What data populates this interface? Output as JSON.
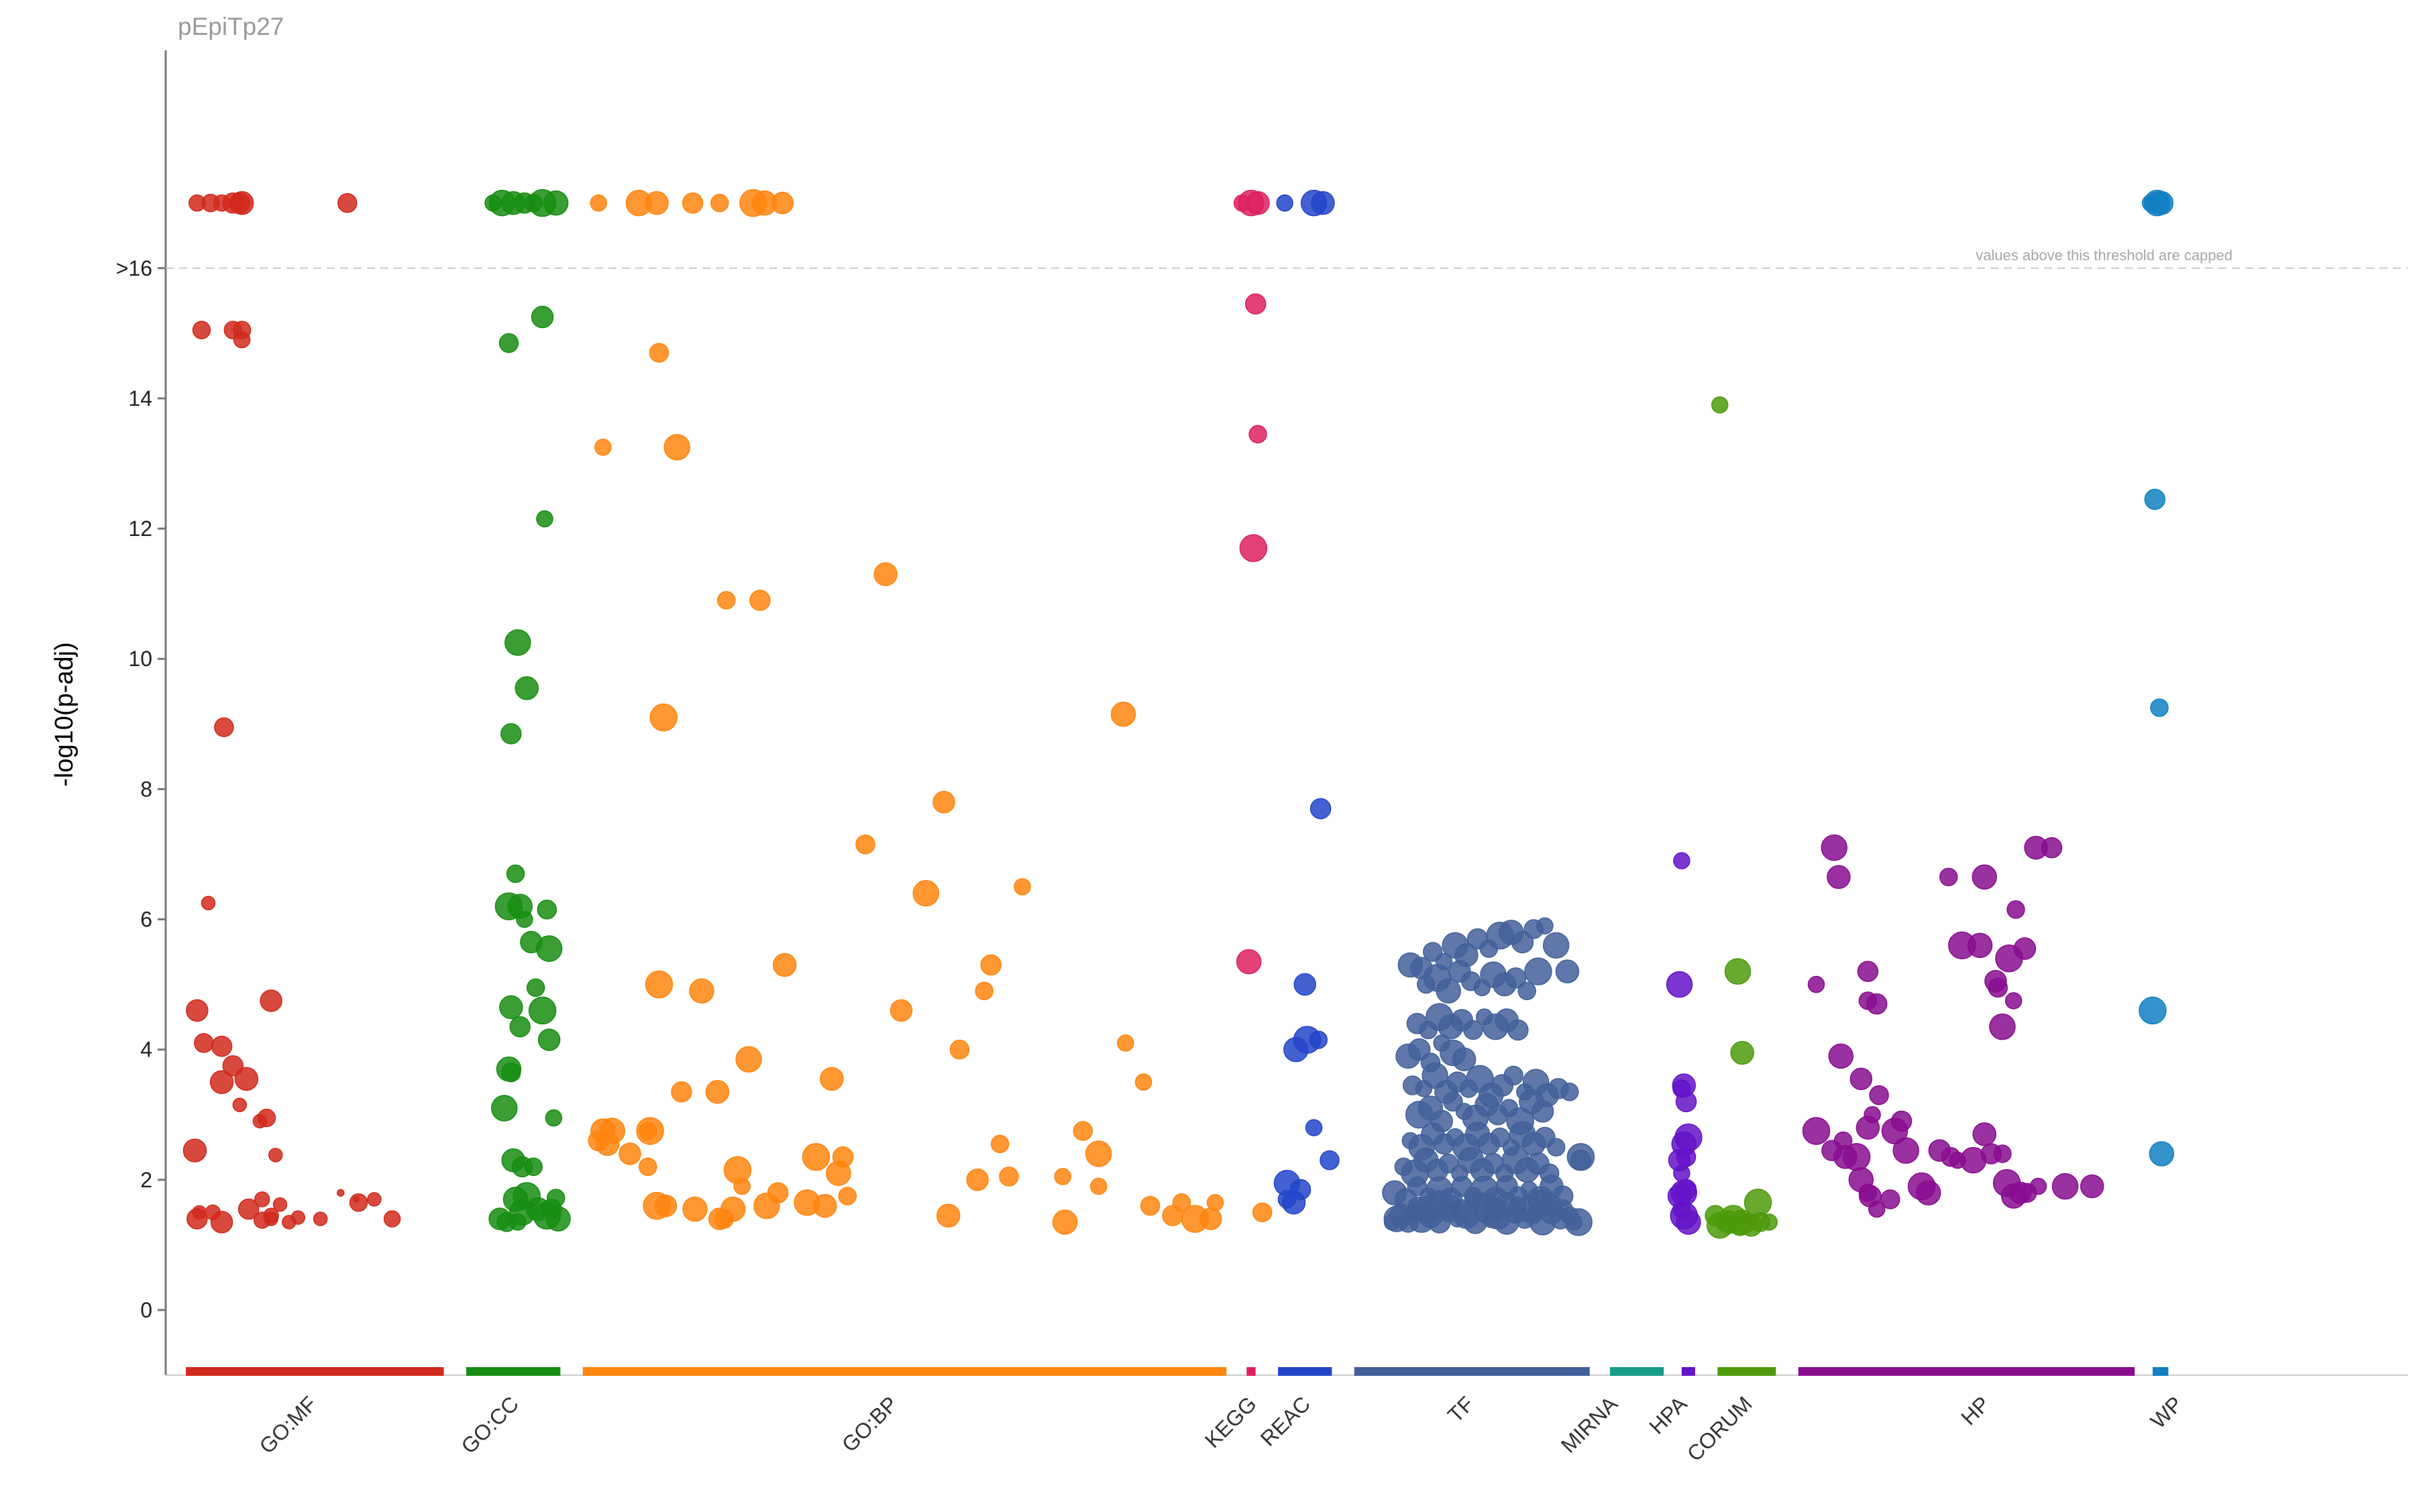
{
  "chart_data": {
    "type": "scatter",
    "title": "pEpiTp27",
    "xlabel": "",
    "ylabel": "-log10(p-adj)",
    "ylim": [
      -1,
      19.5
    ],
    "yticks": [
      {
        "value": 0,
        "label": "0"
      },
      {
        "value": 2,
        "label": "2"
      },
      {
        "value": 4,
        "label": "4"
      },
      {
        "value": 6,
        "label": "6"
      },
      {
        "value": 8,
        "label": "8"
      },
      {
        "value": 10,
        "label": "10"
      },
      {
        "value": 12,
        "label": "12"
      },
      {
        "value": 14,
        "label": "14"
      },
      {
        "value": 16,
        "label": ">16"
      }
    ],
    "cap": {
      "value": 16,
      "capped_value": 17,
      "note": "values above this threshold are capped"
    },
    "grid": false,
    "x_range": [
      0,
      100
    ],
    "sources": [
      {
        "name": "GO:MF",
        "color": "#d1291c",
        "range": [
          0.9,
          12.4
        ],
        "label_x": 5.6
      },
      {
        "name": "GO:CC",
        "color": "#178d12",
        "range": [
          13.4,
          17.6
        ],
        "label_x": 14.6
      },
      {
        "name": "GO:BP",
        "color": "#ff850f",
        "range": [
          18.6,
          47.3
        ],
        "label_x": 31.5
      },
      {
        "name": "KEGG",
        "color": "#dd2160",
        "range": [
          48.2,
          48.6
        ],
        "label_x": 47.5
      },
      {
        "name": "REAC",
        "color": "#2345c9",
        "range": [
          49.6,
          52.0
        ],
        "label_x": 49.9
      },
      {
        "name": "TF",
        "color": "#43609a",
        "range": [
          53.0,
          63.5
        ],
        "label_x": 57.2
      },
      {
        "name": "MIRNA",
        "color": "#179c89",
        "range": [
          64.4,
          66.8
        ],
        "label_x": 63.6
      },
      {
        "name": "HPA",
        "color": "#6413c8",
        "range": [
          67.6,
          68.2
        ],
        "label_x": 66.7
      },
      {
        "name": "CORUM",
        "color": "#4e9a0a",
        "range": [
          69.2,
          71.8
        ],
        "label_x": 69.6
      },
      {
        "name": "HP",
        "color": "#880d8f",
        "range": [
          72.8,
          87.8
        ],
        "label_x": 80.2
      },
      {
        "name": "WP",
        "color": "#1280c2",
        "range": [
          88.6,
          89.3
        ],
        "label_x": 88.8
      }
    ],
    "points": [
      {
        "source": "GO:MF",
        "x": [
          1.4,
          2.0,
          2.5,
          3.0,
          3.3,
          3.4,
          8.1,
          1.6,
          3.0,
          3.4,
          3.4,
          2.6,
          1.9,
          1.4,
          2.5,
          3.0,
          4.7,
          1.7,
          3.6,
          2.5,
          4.5,
          1.3,
          3.3,
          4.2,
          4.9,
          2.5,
          1.4,
          1.5,
          2.1,
          4.3,
          4.7,
          4.3,
          3.7,
          5.1,
          4.7,
          5.5,
          5.9,
          6.9,
          8.6,
          7.8,
          8.5,
          9.3,
          10.1
        ],
        "y": [
          17,
          17,
          17,
          17,
          17,
          17,
          17,
          15.05,
          15.05,
          15.05,
          14.9,
          8.95,
          6.25,
          4.6,
          4.05,
          3.75,
          4.75,
          4.1,
          3.55,
          3.5,
          2.95,
          2.45,
          3.15,
          2.9,
          2.38,
          1.35,
          1.4,
          1.5,
          1.5,
          1.38,
          1.4,
          1.7,
          1.55,
          1.62,
          1.45,
          1.35,
          1.42,
          1.4,
          1.65,
          1.8,
          1.7,
          1.7,
          1.4
        ],
        "r": [
          12,
          13,
          12,
          15,
          15,
          17,
          14,
          13,
          13,
          13,
          12,
          14,
          10,
          16,
          15,
          15,
          16,
          14,
          17,
          17,
          13,
          17,
          10,
          10,
          10,
          16,
          15,
          10,
          11,
          12,
          10,
          11,
          15,
          10,
          11,
          10,
          10,
          10,
          13,
          5,
          4,
          10,
          12
        ]
      },
      {
        "source": "GO:CC",
        "x": [
          14.6,
          15.0,
          15.5,
          16.0,
          16.4,
          16.8,
          17.4,
          16.8,
          15.3,
          16.9,
          15.7,
          16.1,
          15.4,
          15.6,
          15.3,
          15.8,
          16.3,
          17.0,
          16.0,
          17.1,
          15.4,
          15.8,
          16.5,
          16.8,
          15.3,
          17.1,
          15.4,
          17.3,
          15.1,
          15.5,
          15.9,
          16.4,
          16.1,
          15.6,
          14.9,
          15.2,
          15.7,
          15.9,
          16.6,
          17.2,
          17.4,
          17.0,
          17.5
        ],
        "y": [
          17,
          17,
          17,
          17,
          17,
          17,
          17,
          15.25,
          14.85,
          12.15,
          10.25,
          9.55,
          8.85,
          6.7,
          6.2,
          6.2,
          5.65,
          6.15,
          6.0,
          5.55,
          4.65,
          4.35,
          4.95,
          4.6,
          3.7,
          4.15,
          3.65,
          2.95,
          3.1,
          2.3,
          2.2,
          2.2,
          1.75,
          1.7,
          1.4,
          1.35,
          1.35,
          1.5,
          1.55,
          1.55,
          1.72,
          1.45,
          1.4
        ]
      },
      {
        "source": "GO:BP",
        "x": [
          19.3,
          21.1,
          21.9,
          23.5,
          24.7,
          26.2,
          26.7,
          27.5,
          22.0,
          19.5,
          22.8,
          32.1,
          26.5,
          25.0,
          22.2,
          42.7,
          34.7,
          31.2,
          38.2,
          33.9,
          27.6,
          36.8,
          36.5,
          22.0,
          23.9,
          32.8,
          35.4,
          42.8,
          19.9,
          19.7,
          19.3,
          37.2,
          29.0,
          19.5,
          20.7,
          40.9,
          41.6,
          41.6,
          29.7,
          30.2,
          21.5,
          25.5,
          30.0,
          36.2,
          37.6,
          40.0,
          28.6,
          29.4,
          27.3,
          30.4,
          21.9,
          23.6,
          22.3,
          24.9,
          25.7,
          26.8,
          34.9,
          44.9,
          45.3,
          45.9,
          40.1,
          46.6,
          48.9,
          43.6,
          26.0,
          24.6,
          23.0,
          21.5,
          21.6,
          25.3,
          24.7,
          43.9,
          46.8
        ],
        "y": [
          17,
          17,
          17,
          17,
          17,
          17,
          17,
          17,
          14.7,
          13.25,
          13.25,
          11.3,
          10.9,
          10.9,
          9.1,
          9.15,
          7.8,
          7.15,
          6.5,
          6.4,
          5.3,
          5.3,
          4.9,
          5.0,
          4.9,
          4.6,
          4.0,
          4.1,
          2.75,
          2.55,
          2.6,
          2.55,
          2.35,
          2.75,
          2.4,
          2.75,
          1.9,
          2.4,
          3.55,
          2.35,
          2.2,
          2.15,
          2.1,
          2.0,
          2.05,
          2.05,
          1.65,
          1.6,
          1.8,
          1.75,
          1.6,
          1.55,
          1.6,
          1.4,
          1.9,
          1.6,
          1.45,
          1.45,
          1.65,
          1.4,
          1.35,
          1.4,
          1.5,
          3.5,
          3.85,
          3.35,
          3.35,
          2.75,
          2.75,
          1.55,
          1.4,
          1.6,
          1.65
        ]
      },
      {
        "source": "KEGG",
        "x": [
          48.0,
          48.4,
          48.7,
          48.6,
          48.7,
          48.5,
          48.3
        ],
        "y": [
          17,
          17,
          17,
          15.45,
          13.45,
          11.7,
          5.35
        ]
      },
      {
        "source": "REAC",
        "x": [
          49.9,
          51.2,
          51.6,
          51.5,
          51.4,
          50.9,
          50.4,
          50.8,
          51.9,
          51.2,
          50.0,
          50.3,
          50.6,
          50.0
        ],
        "y": [
          17,
          17,
          17,
          7.7,
          4.15,
          4.15,
          4.0,
          5.0,
          2.3,
          2.8,
          1.95,
          1.65,
          1.85,
          1.7
        ]
      },
      {
        "source": "TF",
        "x": [
          54.7,
          54.9,
          55.1,
          55.4,
          55.7,
          56.0,
          56.4,
          56.8,
          57.2,
          57.6,
          58.0,
          58.4,
          58.8,
          59.1,
          59.4,
          59.8,
          60.2,
          60.6,
          61.0,
          61.4,
          61.8,
          62.2,
          62.6,
          63.0,
          54.8,
          55.3,
          55.8,
          56.3,
          56.8,
          57.3,
          57.8,
          58.3,
          58.8,
          59.3,
          59.8,
          60.3,
          60.8,
          61.3,
          61.8,
          62.3,
          55.2,
          55.7,
          56.2,
          56.7,
          57.2,
          57.7,
          58.2,
          58.7,
          59.2,
          59.7,
          60.2,
          60.7,
          61.2,
          61.7,
          55.5,
          56.0,
          56.5,
          57.0,
          57.5,
          58.0,
          58.5,
          59.0,
          59.5,
          60.0,
          60.5,
          61.0,
          61.5,
          62.0,
          55.9,
          56.4,
          56.9,
          57.4,
          57.9,
          58.4,
          58.9,
          59.4,
          59.9,
          60.4,
          60.9,
          61.4,
          55.6,
          56.1,
          56.6,
          57.1,
          57.6,
          58.1,
          58.6,
          59.1,
          59.6,
          60.1,
          60.6,
          61.1,
          61.6,
          62.1,
          62.6,
          63.1,
          55.4,
          55.9,
          56.4,
          56.9,
          57.4,
          57.9,
          55.8,
          56.3,
          56.8,
          57.3,
          57.8,
          58.3,
          58.8,
          59.3,
          59.8,
          60.3,
          56.2,
          56.7,
          57.2,
          57.7,
          58.2,
          58.7,
          59.2,
          59.7,
          60.2,
          60.7,
          61.2,
          55.5,
          56.0,
          56.5,
          57.0,
          57.5,
          58.0,
          58.5,
          59.0,
          59.5,
          60.0,
          60.5,
          61.0,
          61.5,
          62.0,
          62.5,
          63.1,
          55.8,
          56.3,
          56.8,
          57.3,
          57.8,
          58.3,
          58.8,
          59.3,
          59.8,
          60.3,
          60.8,
          61.3,
          61.8,
          62.3,
          62.8
        ],
        "y": [
          1.35,
          1.4,
          1.45,
          1.35,
          1.5,
          1.4,
          1.45,
          1.35,
          1.5,
          1.4,
          1.45,
          1.35,
          1.5,
          1.4,
          1.45,
          1.35,
          1.5,
          1.4,
          1.45,
          1.35,
          1.5,
          1.4,
          1.45,
          1.35,
          1.8,
          1.7,
          1.9,
          1.75,
          1.85,
          1.7,
          1.9,
          1.75,
          1.85,
          1.7,
          1.9,
          1.75,
          1.85,
          1.7,
          1.9,
          1.75,
          2.2,
          2.1,
          2.3,
          2.15,
          2.25,
          2.1,
          2.3,
          2.15,
          2.25,
          2.1,
          2.3,
          2.15,
          2.25,
          2.1,
          2.6,
          2.5,
          2.7,
          2.55,
          2.65,
          2.5,
          2.7,
          2.55,
          2.65,
          2.5,
          2.7,
          2.55,
          2.65,
          2.5,
          3.0,
          3.1,
          2.9,
          3.2,
          3.05,
          2.95,
          3.15,
          3.0,
          3.1,
          2.9,
          3.2,
          3.05,
          3.45,
          3.4,
          3.6,
          3.35,
          3.5,
          3.4,
          3.55,
          3.3,
          3.45,
          3.6,
          3.35,
          3.5,
          3.3,
          3.4,
          3.35,
          2.35,
          3.9,
          4.0,
          3.8,
          4.1,
          3.95,
          3.85,
          4.4,
          4.3,
          4.5,
          4.35,
          4.45,
          4.3,
          4.5,
          4.35,
          4.45,
          4.3,
          5.0,
          5.1,
          4.9,
          5.2,
          5.05,
          4.95,
          5.15,
          5.0,
          5.1,
          4.9,
          5.2,
          5.3,
          5.25,
          5.5,
          5.35,
          5.6,
          5.45,
          5.7,
          5.55,
          5.75,
          5.8,
          5.65,
          5.85,
          5.9,
          5.6,
          5.2,
          2.3,
          1.6,
          1.55,
          1.65,
          1.6,
          1.55,
          1.7,
          1.6,
          1.55,
          1.65,
          1.6,
          1.55,
          1.65,
          1.6,
          1.55,
          1.35
        ]
      },
      {
        "source": "HPA",
        "x": [
          67.6,
          67.5,
          67.7,
          67.8,
          67.6,
          67.9,
          67.7,
          67.5,
          67.8,
          67.6,
          67.7,
          67.5,
          67.8,
          67.6,
          67.7,
          67.9
        ],
        "y": [
          6.9,
          5.0,
          3.45,
          3.2,
          3.4,
          2.65,
          2.55,
          2.3,
          2.35,
          2.1,
          1.8,
          1.75,
          1.85,
          1.55,
          1.45,
          1.35
        ]
      },
      {
        "source": "CORUM",
        "x": [
          69.3,
          70.1,
          70.3,
          69.1,
          69.5,
          69.9,
          70.3,
          70.7,
          71.1,
          71.5,
          69.3,
          69.7,
          70.2,
          70.6,
          71.0
        ],
        "y": [
          13.9,
          5.2,
          3.95,
          1.45,
          1.35,
          1.4,
          1.35,
          1.3,
          1.35,
          1.35,
          1.3,
          1.35,
          1.3,
          1.35,
          1.65
        ]
      },
      {
        "source": "HP",
        "x": [
          73.6,
          74.4,
          74.6,
          75.9,
          75.9,
          73.6,
          74.7,
          75.6,
          76.4,
          76.1,
          77.1,
          75.9,
          77.4,
          74.8,
          75.4,
          75.6,
          76.0,
          76.9,
          76.3,
          77.6,
          74.9,
          74.3,
          75.9,
          78.3,
          78.6,
          79.1,
          79.6,
          79.9,
          80.6,
          81.1,
          81.4,
          81.9,
          82.1,
          82.4,
          82.7,
          83.0,
          83.5,
          84.7,
          85.9,
          76.3,
          79.5,
          80.1,
          81.1,
          82.9,
          81.7,
          82.4,
          81.9,
          83.4,
          84.1,
          82.5,
          82.2,
          80.9,
          81.6
        ],
        "y": [
          5.0,
          7.1,
          6.65,
          5.2,
          4.75,
          2.75,
          3.9,
          3.55,
          3.3,
          3.0,
          2.75,
          2.8,
          2.9,
          2.6,
          2.35,
          2.0,
          1.75,
          1.7,
          1.55,
          2.45,
          2.35,
          2.45,
          1.8,
          1.9,
          1.8,
          2.45,
          2.35,
          2.3,
          2.3,
          2.7,
          2.4,
          2.4,
          1.95,
          1.75,
          1.8,
          1.8,
          1.9,
          1.9,
          1.9,
          4.7,
          6.65,
          5.6,
          6.65,
          5.55,
          4.95,
          4.75,
          4.35,
          7.1,
          7.1,
          6.15,
          5.4,
          5.6,
          5.05
        ]
      },
      {
        "source": "WP",
        "x": [
          88.5,
          88.8,
          89.0,
          88.7,
          88.9,
          88.6,
          89.0,
          88.8
        ],
        "y": [
          17,
          17,
          17,
          12.45,
          9.25,
          4.6,
          2.4,
          17
        ]
      }
    ]
  }
}
